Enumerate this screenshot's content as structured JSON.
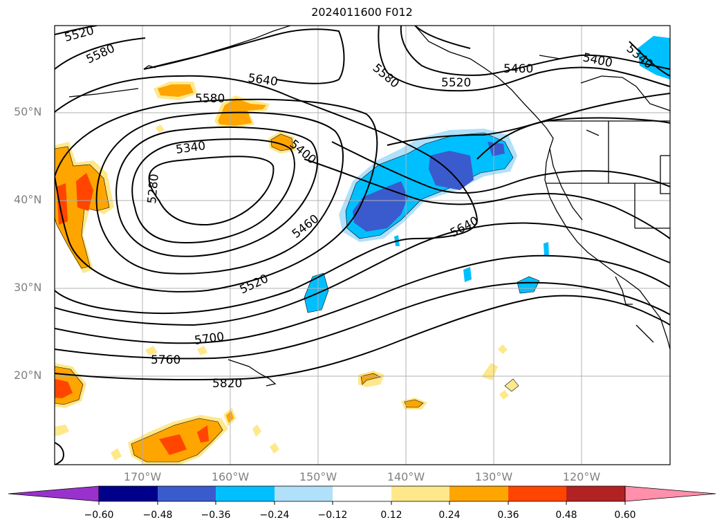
{
  "title": "2024011600 F012",
  "map": {
    "lat_labels": [
      "50°N",
      "40°N",
      "30°N",
      "20°N"
    ],
    "lon_labels": [
      "170°W",
      "160°W",
      "150°W",
      "140°W",
      "130°W",
      "120°W"
    ],
    "contour_labels": [
      "5520",
      "5580",
      "5640",
      "5580",
      "5460",
      "5400",
      "5340",
      "5520",
      "5580",
      "5340",
      "5400",
      "5280",
      "5460",
      "5640",
      "5520",
      "5700",
      "5760",
      "5820"
    ]
  },
  "colorbar": {
    "ticks": [
      "−0.60",
      "−0.48",
      "−0.36",
      "−0.24",
      "−0.12",
      "0.12",
      "0.24",
      "0.36",
      "0.48",
      "0.60"
    ],
    "colors": [
      "#9932cc",
      "#00008b",
      "#3a5bcd",
      "#00bfff",
      "#b0e0fa",
      "#ffffff",
      "#ffe88a",
      "#ffa500",
      "#ff4500",
      "#b22222",
      "#ff8fab"
    ]
  }
}
